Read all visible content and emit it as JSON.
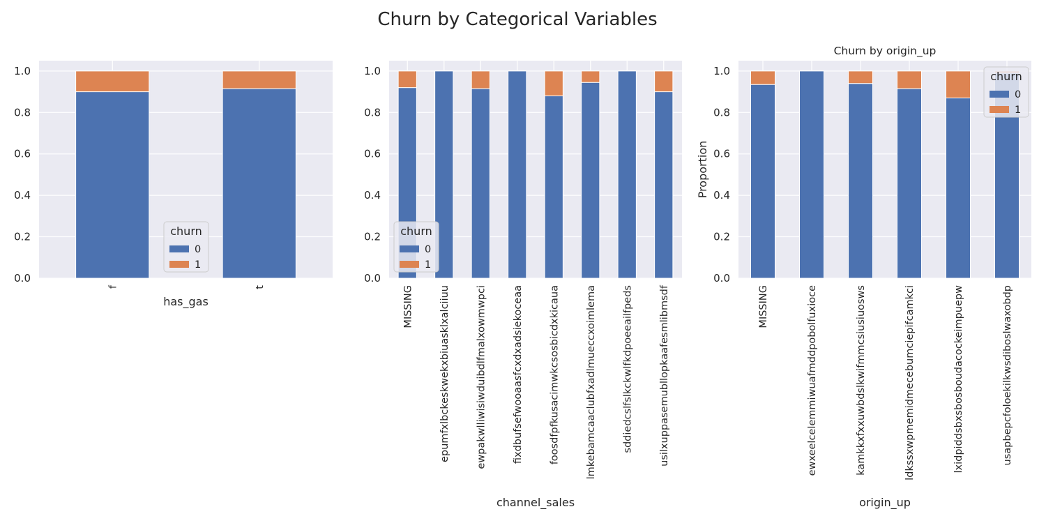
{
  "figure": {
    "suptitle": "Churn by Categorical Variables"
  },
  "colors": {
    "churn_0": "#4c72b0",
    "churn_1": "#dd8452",
    "panel_bg": "#eaeaf2",
    "grid": "#ffffff",
    "text": "#262626"
  },
  "chart_data": [
    {
      "type": "bar",
      "stacked": true,
      "title": "",
      "xlabel": "has_gas",
      "ylabel": "",
      "ylim": [
        0,
        1.05
      ],
      "yticks": [
        "0.0",
        "0.2",
        "0.4",
        "0.6",
        "0.8",
        "1.0"
      ],
      "categories": [
        "f",
        "t"
      ],
      "series": [
        {
          "name": "0",
          "values": [
            0.9,
            0.915
          ]
        },
        {
          "name": "1",
          "values": [
            0.1,
            0.085
          ]
        }
      ],
      "legend": {
        "title": "churn",
        "placement": "lower-center"
      },
      "grid": true
    },
    {
      "type": "bar",
      "stacked": true,
      "title": "",
      "xlabel": "channel_sales",
      "ylabel": "",
      "ylim": [
        0,
        1.05
      ],
      "yticks": [
        "0.0",
        "0.2",
        "0.4",
        "0.6",
        "0.8",
        "1.0"
      ],
      "categories": [
        "MISSING",
        "epumfxlbckeskwekxbiuasklxalciiuu",
        "ewpakwlliwisiwduibdlfmalxowmwpci",
        "fixdbufsefwooaasfcxdxadsiekoceaa",
        "foosdfpfkusacimwkcsosbicdxkicaua",
        "lmkebamcaaclubfxadlmueccxoimlema",
        "sddiedcslfslkckwlfkdpoeeailfpeds",
        "usilxuppasemubllopkaafesmlibmsdf"
      ],
      "series": [
        {
          "name": "0",
          "values": [
            0.92,
            1.0,
            0.915,
            1.0,
            0.88,
            0.945,
            1.0,
            0.9
          ]
        },
        {
          "name": "1",
          "values": [
            0.08,
            0.0,
            0.085,
            0.0,
            0.12,
            0.055,
            0.0,
            0.1
          ]
        }
      ],
      "legend": {
        "title": "churn",
        "placement": "lower-left"
      },
      "grid": true
    },
    {
      "type": "bar",
      "stacked": true,
      "title": "Churn by origin_up",
      "xlabel": "origin_up",
      "ylabel": "Proportion",
      "ylim": [
        0,
        1.05
      ],
      "yticks": [
        "0.0",
        "0.2",
        "0.4",
        "0.6",
        "0.8",
        "1.0"
      ],
      "categories": [
        "MISSING",
        "ewxeelcelemmiwuafmddpobolfuxioce",
        "kamkkxfxxuwbdslkwifmmcsiusiuosws",
        "ldkssxwpmemidmecebumciepifcamkci",
        "lxidpiddsbxsbosboudacockeimpuepw",
        "usapbepcfoloekilkwsdiboslwaxobdp"
      ],
      "series": [
        {
          "name": "0",
          "values": [
            0.935,
            1.0,
            0.94,
            0.915,
            0.87,
            0.99
          ]
        },
        {
          "name": "1",
          "values": [
            0.065,
            0.0,
            0.06,
            0.085,
            0.13,
            0.01
          ]
        }
      ],
      "legend": {
        "title": "churn",
        "placement": "upper-right"
      },
      "grid": true
    }
  ]
}
